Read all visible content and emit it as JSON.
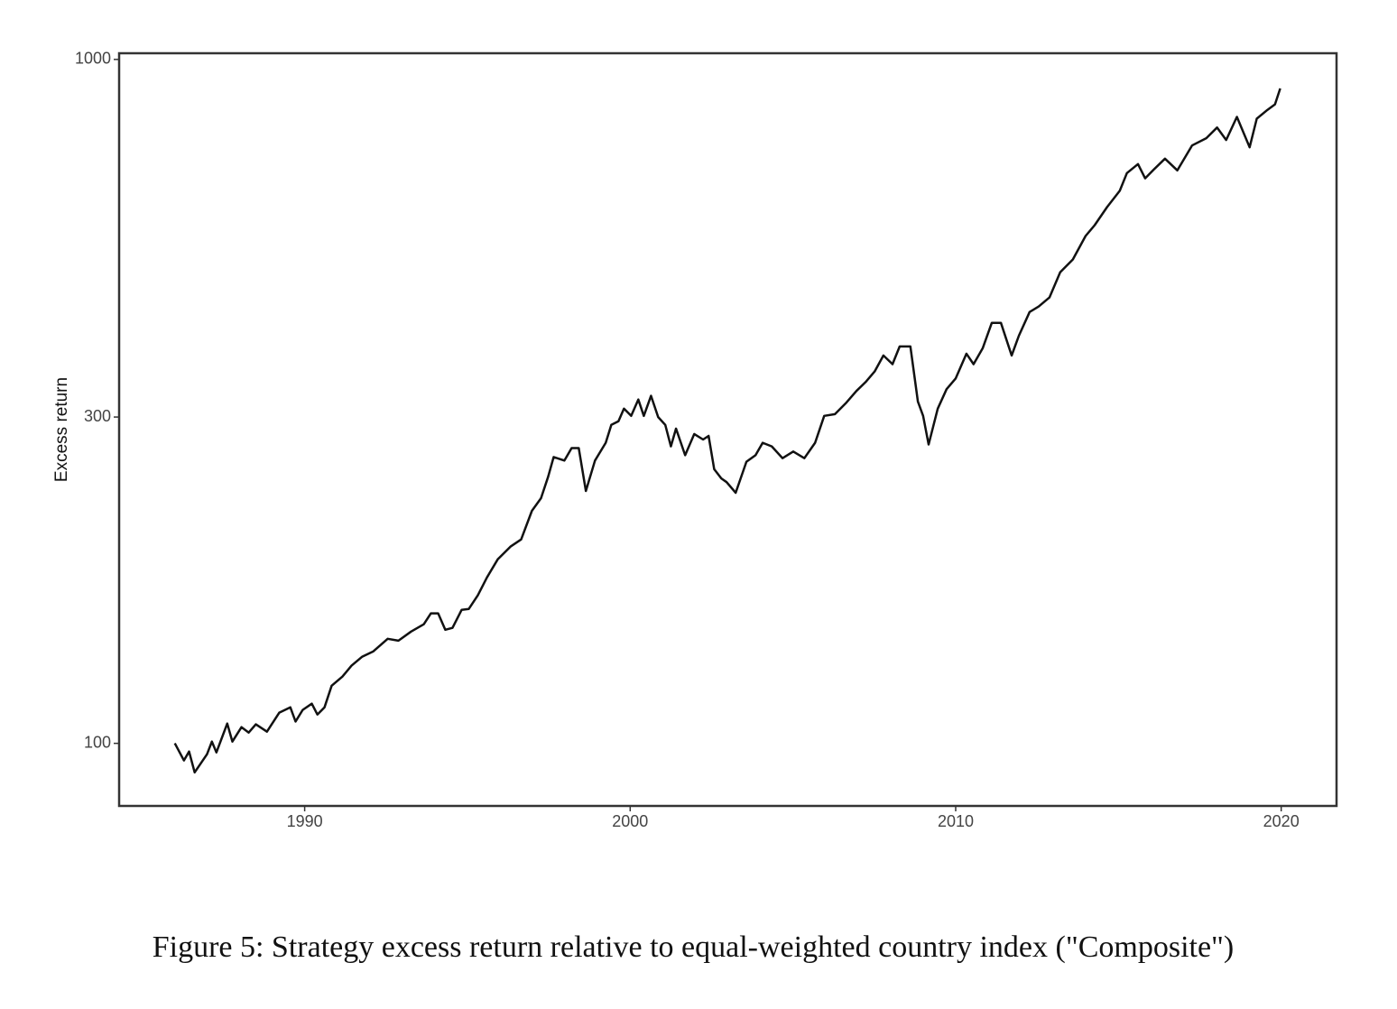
{
  "chart_data": {
    "type": "line",
    "caption": "Figure 5: Strategy excess return relative to equal-weighted country index (\"Composite\")",
    "ylabel": "Excess return",
    "y_scale": "log",
    "color": "#111111",
    "xlim": [
      1984.3,
      2021.7
    ],
    "xticks": [
      1990,
      2000,
      2010,
      2020
    ],
    "ylim": [
      81,
      1021
    ],
    "yticks": [
      100,
      300,
      1000
    ],
    "x": [
      1986.01,
      1986.29,
      1986.45,
      1986.62,
      1987.0,
      1987.15,
      1987.29,
      1987.62,
      1987.78,
      1988.06,
      1988.28,
      1988.5,
      1988.84,
      1989.22,
      1989.56,
      1989.72,
      1989.94,
      1990.22,
      1990.39,
      1990.61,
      1990.83,
      1991.16,
      1991.44,
      1991.77,
      1992.11,
      1992.55,
      1992.88,
      1993.27,
      1993.66,
      1993.88,
      1994.1,
      1994.32,
      1994.54,
      1994.82,
      1995.04,
      1995.32,
      1995.6,
      1995.93,
      1996.32,
      1996.65,
      1996.98,
      1997.26,
      1997.48,
      1997.65,
      1997.98,
      1998.2,
      1998.42,
      1998.64,
      1998.92,
      1999.25,
      1999.42,
      1999.64,
      1999.81,
      2000.03,
      2000.25,
      2000.42,
      2000.64,
      2000.86,
      2001.08,
      2001.25,
      2001.41,
      2001.69,
      2001.97,
      2002.24,
      2002.41,
      2002.58,
      2002.8,
      2002.96,
      2003.24,
      2003.57,
      2003.85,
      2004.07,
      2004.35,
      2004.68,
      2005.01,
      2005.35,
      2005.68,
      2005.96,
      2006.29,
      2006.62,
      2006.95,
      2007.23,
      2007.51,
      2007.78,
      2008.06,
      2008.28,
      2008.61,
      2008.84,
      2009.0,
      2009.17,
      2009.45,
      2009.72,
      2010.0,
      2010.33,
      2010.55,
      2010.83,
      2011.11,
      2011.39,
      2011.72,
      2011.94,
      2012.27,
      2012.55,
      2012.88,
      2013.21,
      2013.6,
      2013.99,
      2014.27,
      2014.65,
      2015.04,
      2015.26,
      2015.6,
      2015.82,
      2016.09,
      2016.43,
      2016.81,
      2017.26,
      2017.7,
      2018.03,
      2018.31,
      2018.64,
      2019.03,
      2019.25,
      2019.58,
      2019.81,
      2019.97
    ],
    "values": [
      100,
      94.4,
      97.3,
      90.7,
      96.4,
      100.6,
      97,
      106.9,
      100.6,
      105.6,
      103.7,
      106.6,
      104,
      110.9,
      112.9,
      107.6,
      111.9,
      114.3,
      110.2,
      112.9,
      121.4,
      125.2,
      129.9,
      133.9,
      136.3,
      142.2,
      141.3,
      145.7,
      149.3,
      154.9,
      154.9,
      146.6,
      147.5,
      156.7,
      157.2,
      164.6,
      174.8,
      185.8,
      193.9,
      198.7,
      218.8,
      228.3,
      245.4,
      262.2,
      259.1,
      270.2,
      270.2,
      233.9,
      259.1,
      275.1,
      292.2,
      295.7,
      308.6,
      301.2,
      318.2,
      301.2,
      322.2,
      300,
      292.2,
      271.8,
      288.5,
      263.8,
      283.3,
      278.1,
      281.5,
      251.7,
      244,
      241,
      232.5,
      258.1,
      263.8,
      275.1,
      271.8,
      261.2,
      267.1,
      261.2,
      275.1,
      301.2,
      302.9,
      314.2,
      327.5,
      337.4,
      349.7,
      369.1,
      358.4,
      380.4,
      380.4,
      316.1,
      301.2,
      273.5,
      308.6,
      329.5,
      341.6,
      371.3,
      358.4,
      378.1,
      412,
      412,
      369.1,
      394.5,
      427.3,
      435.3,
      448.7,
      488.5,
      509.9,
      551.9,
      572.4,
      608.1,
      642.5,
      682.1,
      703.1,
      670,
      690.4,
      715.9,
      688.2,
      748.5,
      767.1,
      795.1,
      762.4,
      824.1,
      744,
      819.2,
      844,
      859.7,
      907
    ]
  }
}
